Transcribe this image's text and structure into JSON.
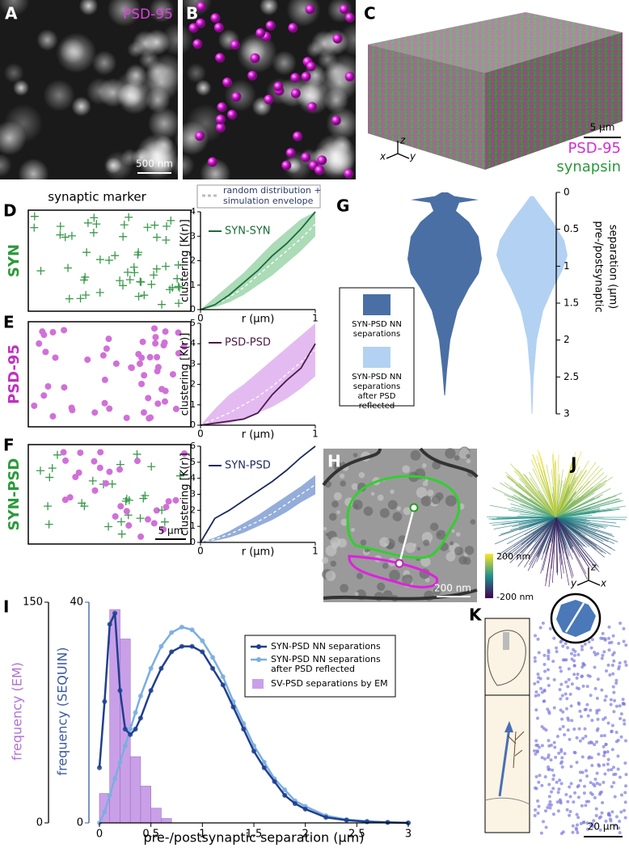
{
  "panels": {
    "A": {
      "letter": "A",
      "label": "PSD-95",
      "scale": "500 nm"
    },
    "B": {
      "letter": "B"
    },
    "C": {
      "letter": "C",
      "scale": "5 µm",
      "label1": "PSD-95",
      "label2": "synapsin",
      "axes": [
        "x",
        "z",
        "y"
      ]
    },
    "G": {
      "letter": "G",
      "axis_label": [
        "pre-/postsynaptic",
        "separation (µm)"
      ],
      "ylim": [
        0,
        3
      ],
      "yticks": [
        0,
        0.5,
        1,
        1.5,
        2,
        2.5,
        3
      ],
      "legend": [
        {
          "lines": [
            "SYN-PSD NN",
            "separations"
          ],
          "color": "#4a6fa5"
        },
        {
          "lines": [
            "SYN-PSD NN",
            "separations",
            "after PSD",
            "reflected"
          ],
          "color": "#b3d1f2"
        }
      ]
    },
    "H": {
      "letter": "H",
      "scale": "200 nm"
    },
    "J": {
      "letter": "J",
      "cmax": "200 nm",
      "cmin": "-200 nm",
      "axes": [
        "y",
        "z",
        "x"
      ]
    },
    "K": {
      "letter": "K",
      "scale": "20 µm"
    }
  },
  "header": {
    "marker": "synaptic marker",
    "legend": [
      "random distribution +",
      "simulation envelope"
    ]
  },
  "rows": [
    {
      "letter": "D",
      "label": "SYN"
    },
    {
      "letter": "E",
      "label": "PSD-95"
    },
    {
      "letter": "F",
      "label": "SYN-PSD",
      "scale": "5 µm"
    }
  ],
  "chart_data": [
    {
      "type": "line",
      "x": [
        0,
        0.125,
        0.25,
        0.375,
        0.5,
        0.625,
        0.75,
        0.875,
        1
      ],
      "series": [
        {
          "name": "SYN-SYN",
          "color": "#1a6b3a",
          "values": [
            0,
            0.2,
            0.6,
            1.1,
            1.6,
            2.2,
            2.7,
            3.3,
            4.0
          ]
        }
      ],
      "envelope": {
        "color": "#8fcf9f",
        "low": [
          0,
          0.1,
          0.3,
          0.6,
          1.0,
          1.4,
          1.9,
          2.4,
          3.0
        ],
        "high": [
          0,
          0.5,
          1.0,
          1.5,
          2.1,
          2.7,
          3.2,
          3.7,
          4.0
        ],
        "mean": [
          0,
          0.2,
          0.5,
          0.9,
          1.4,
          1.9,
          2.4,
          2.9,
          3.5
        ]
      },
      "xlim": [
        0,
        1
      ],
      "ylim": [
        0,
        4
      ],
      "xticks": [
        0,
        1
      ],
      "yticks": [
        0,
        1,
        2,
        3,
        4
      ],
      "xlabel": "r (µm)",
      "ylabel": "clustering [K(r)]"
    },
    {
      "type": "line",
      "x": [
        0,
        0.125,
        0.25,
        0.375,
        0.5,
        0.625,
        0.75,
        0.875,
        1
      ],
      "series": [
        {
          "name": "PSD-PSD",
          "color": "#4a1a4a",
          "values": [
            0,
            0.1,
            0.2,
            0.3,
            0.6,
            1.5,
            2.2,
            2.8,
            4.0
          ]
        }
      ],
      "envelope": {
        "color": "#dba4ec",
        "low": [
          0,
          0,
          0.1,
          0.3,
          0.6,
          0.9,
          1.3,
          1.8,
          2.4
        ],
        "high": [
          0,
          0.8,
          1.5,
          2.0,
          2.6,
          3.2,
          3.8,
          4.4,
          5.0
        ],
        "mean": [
          0,
          0.3,
          0.6,
          1.0,
          1.4,
          1.9,
          2.5,
          3.1,
          3.7
        ]
      },
      "xlim": [
        0,
        1
      ],
      "ylim": [
        0,
        5
      ],
      "xticks": [
        0,
        1
      ],
      "yticks": [
        0,
        1,
        2,
        3,
        4,
        5
      ],
      "xlabel": "r (µm)",
      "ylabel": "clustering [K(r)]"
    },
    {
      "type": "line",
      "x": [
        0,
        0.125,
        0.25,
        0.375,
        0.5,
        0.625,
        0.75,
        0.875,
        1
      ],
      "series": [
        {
          "name": "SYN-PSD",
          "color": "#1b2a5c",
          "values": [
            0,
            1.5,
            2.0,
            2.6,
            3.2,
            3.8,
            4.5,
            5.3,
            6.0
          ]
        }
      ],
      "envelope": {
        "color": "#7092cc",
        "low": [
          0,
          0.1,
          0.3,
          0.6,
          1.0,
          1.4,
          1.9,
          2.5,
          3.0
        ],
        "high": [
          0,
          0.3,
          0.7,
          1.2,
          1.7,
          2.3,
          2.9,
          3.5,
          4.2
        ],
        "mean": [
          0,
          0.2,
          0.5,
          0.9,
          1.3,
          1.8,
          2.4,
          3.0,
          3.6
        ]
      },
      "xlim": [
        0,
        1
      ],
      "ylim": [
        0,
        6
      ],
      "xticks": [
        0,
        1
      ],
      "yticks": [
        0,
        1,
        2,
        3,
        4,
        5,
        6
      ],
      "xlabel": "r (µm)",
      "ylabel": "clustering [K(r)]"
    },
    {
      "type": "combo",
      "letter": "I",
      "x": [
        0,
        0.05,
        0.1,
        0.15,
        0.2,
        0.25,
        0.3,
        0.35,
        0.4,
        0.5,
        0.6,
        0.7,
        0.8,
        0.9,
        1,
        1.1,
        1.2,
        1.3,
        1.4,
        1.5,
        1.6,
        1.7,
        1.8,
        1.9,
        2,
        2.2,
        2.4,
        2.6,
        2.8,
        3
      ],
      "series": [
        {
          "name": "SYN-PSD NN separations",
          "color": "#1f3f8f",
          "values": [
            10,
            22,
            36,
            38,
            24,
            17,
            16,
            17,
            19,
            24,
            28,
            31,
            32,
            32,
            31,
            28,
            25,
            21,
            17,
            13,
            10,
            7.5,
            5,
            3.5,
            2.5,
            1,
            0.5,
            0.2,
            0.1,
            0
          ]
        },
        {
          "name": [
            "SYN-PSD NN separations",
            "after PSD reflected"
          ],
          "color": "#7aaee0",
          "values": [
            0,
            2,
            5,
            8,
            11,
            14,
            17,
            20,
            23,
            28,
            32,
            34.5,
            35.5,
            35,
            33,
            30,
            26.5,
            22,
            18,
            14,
            11,
            8,
            6,
            4,
            3,
            1.3,
            0.6,
            0.3,
            0.1,
            0
          ]
        }
      ],
      "histogram": {
        "name": "SV-PSD separations by EM",
        "color": "#c9a0e8",
        "axis": "y2",
        "bins": [
          0,
          0.1,
          0.2,
          0.3,
          0.4,
          0.5,
          0.6,
          0.7
        ],
        "values": [
          20,
          145,
          125,
          45,
          25,
          10,
          3
        ]
      },
      "xlim": [
        0,
        3
      ],
      "xticks": [
        0,
        0.5,
        1,
        1.5,
        2,
        2.5,
        3
      ],
      "ylim": [
        0,
        40
      ],
      "yticks": [
        0,
        40
      ],
      "y2lim": [
        0,
        150
      ],
      "y2ticks": [
        0,
        150
      ],
      "xlabel": "pre-/postsynaptic separation (µm)",
      "ylabel": "frequency (SEQUIN)",
      "y2label": "frequency (EM)"
    }
  ]
}
